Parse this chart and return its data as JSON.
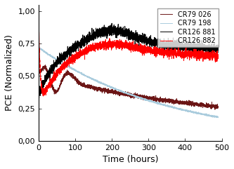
{
  "title": "",
  "xlabel": "Time (hours)",
  "ylabel": "PCE (Normalized)",
  "xlim": [
    0,
    500
  ],
  "ylim": [
    0.0,
    1.05
  ],
  "yticks": [
    0.0,
    0.25,
    0.5,
    0.75,
    1.0
  ],
  "ytick_labels": [
    "0,00",
    "0,25",
    "0,50",
    "0,75",
    "1,00"
  ],
  "xticks": [
    0,
    100,
    200,
    300,
    400,
    500
  ],
  "legend_labels": [
    "CR79 026",
    "CR79 198",
    "CR126 881",
    "CR126 882"
  ],
  "colors": {
    "CR79_026": "#6B1515",
    "CR79_198": "#AACCDD",
    "CR126_881": "#000000",
    "CR126_882": "#FF0000"
  },
  "linewidths": {
    "CR79_026": 0.7,
    "CR79_198": 0.7,
    "CR126_881": 0.7,
    "CR126_882": 0.7
  },
  "noise_seed": 42
}
